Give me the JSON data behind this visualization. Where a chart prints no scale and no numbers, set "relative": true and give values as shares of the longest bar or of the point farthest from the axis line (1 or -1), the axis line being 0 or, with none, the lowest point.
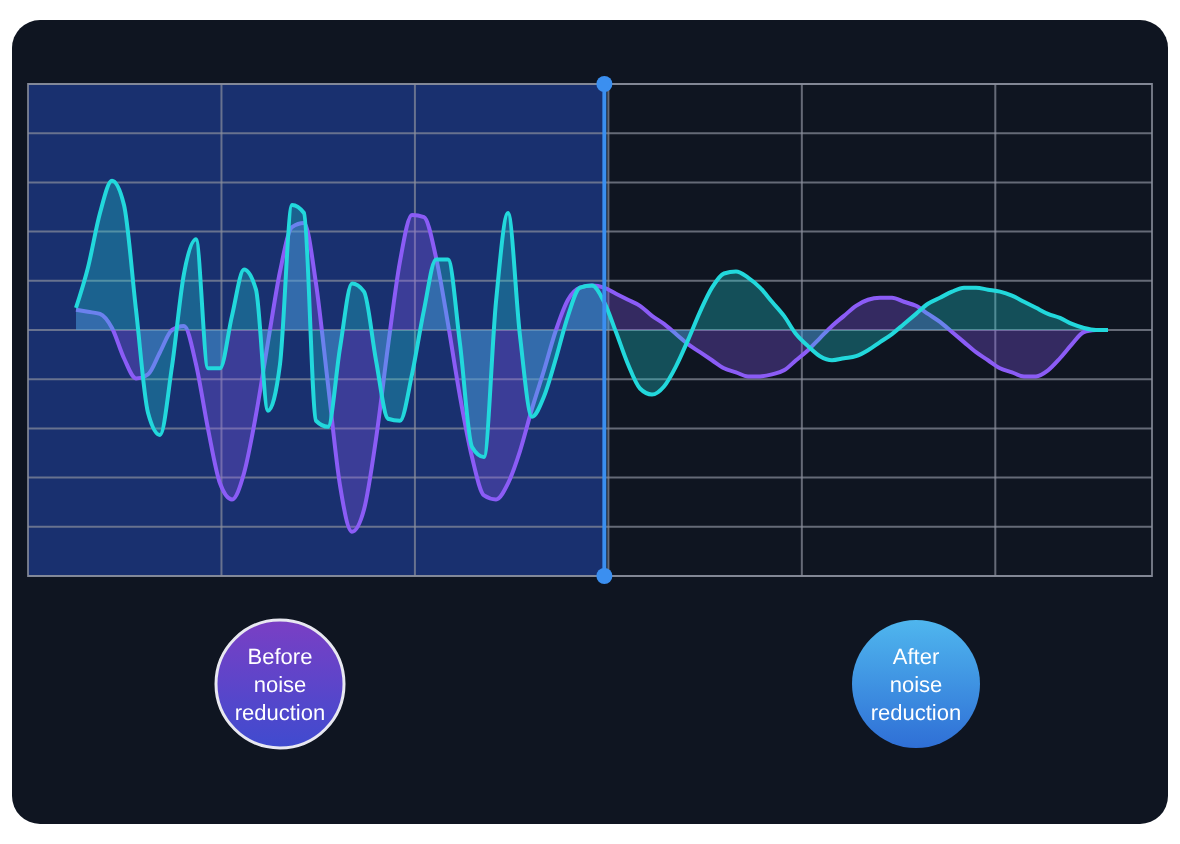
{
  "chart_data": {
    "type": "area",
    "relative": true,
    "grid": true,
    "categories": [
      null,
      null,
      null,
      null,
      null,
      null,
      null,
      null,
      null,
      null,
      null,
      null,
      null,
      null,
      null,
      null,
      null,
      null,
      null,
      null,
      null,
      null,
      null,
      null,
      null,
      null,
      null,
      null,
      null,
      null,
      null,
      null,
      null,
      null,
      null,
      null,
      null,
      null,
      null,
      null,
      null,
      null,
      null,
      null,
      null,
      null,
      null,
      null,
      null,
      null,
      null,
      null,
      null,
      null,
      null,
      null,
      null,
      null,
      null,
      null,
      null,
      null,
      null,
      null,
      null,
      null,
      null,
      null,
      null,
      null,
      null,
      null,
      null,
      null,
      null,
      null,
      null,
      null,
      null,
      null,
      null,
      null,
      null,
      null,
      null,
      null,
      null,
      null,
      null,
      null,
      null,
      null,
      null,
      null
    ],
    "series": [
      {
        "color": "#8b5cf6",
        "values": [
          null,
          null,
          null,
          null,
          0.1,
          0.09,
          0.08,
          0.01,
          -0.14,
          -0.24,
          -0.22,
          -0.11,
          0,
          0.02,
          -0.17,
          -0.49,
          -0.76,
          -0.84,
          -0.71,
          -0.42,
          -0.06,
          0.29,
          0.51,
          0.53,
          0.23,
          -0.27,
          -0.77,
          -1,
          -0.89,
          -0.54,
          -0.08,
          0.34,
          0.57,
          0.56,
          0.36,
          0.03,
          -0.33,
          -0.63,
          -0.82,
          -0.84,
          -0.76,
          -0.6,
          -0.39,
          -0.2,
          0,
          0.15,
          0.21,
          0.22,
          0.21,
          0.18,
          0.15,
          0.12,
          0.07,
          0.03,
          -0.02,
          -0.07,
          -0.11,
          -0.15,
          -0.19,
          -0.21,
          -0.23,
          -0.23,
          -0.22,
          -0.2,
          -0.15,
          -0.1,
          -0.04,
          0.02,
          0.07,
          0.12,
          0.15,
          0.16,
          0.16,
          0.14,
          0.12,
          0.08,
          0.04,
          -0.01,
          -0.06,
          -0.11,
          -0.15,
          -0.19,
          -0.21,
          -0.23,
          -0.23,
          -0.2,
          -0.14,
          -0.07,
          -0.01,
          0,
          null,
          null,
          null,
          null
        ]
      },
      {
        "color": "#22d8dc",
        "values": [
          null,
          null,
          null,
          null,
          0.11,
          0.31,
          0.58,
          0.74,
          0.62,
          0.1,
          -0.41,
          -0.52,
          -0.18,
          0.28,
          0.45,
          -0.19,
          -0.19,
          0.07,
          0.3,
          0.2,
          -0.4,
          -0.17,
          0.62,
          0.58,
          -0.45,
          -0.48,
          -0.09,
          0.23,
          0.19,
          -0.15,
          -0.44,
          -0.45,
          -0.22,
          0.1,
          0.35,
          0.35,
          -0.07,
          -0.58,
          -0.63,
          0.14,
          0.58,
          -0.03,
          -0.43,
          -0.33,
          -0.14,
          0.07,
          0.21,
          0.22,
          0.14,
          -0.01,
          -0.17,
          -0.29,
          -0.32,
          -0.28,
          -0.18,
          -0.05,
          0.09,
          0.21,
          0.28,
          0.29,
          0.26,
          0.21,
          0.14,
          0.07,
          -0.02,
          -0.08,
          -0.13,
          -0.15,
          -0.14,
          -0.13,
          -0.1,
          -0.06,
          -0.02,
          0.03,
          0.08,
          0.13,
          0.16,
          0.19,
          0.21,
          0.21,
          0.2,
          0.19,
          0.17,
          0.14,
          0.11,
          0.08,
          0.06,
          0.03,
          0.01,
          0,
          0,
          null,
          null,
          null
        ]
      }
    ],
    "annotations": [
      "Before noise reduction",
      "After noise reduction"
    ]
  }
}
